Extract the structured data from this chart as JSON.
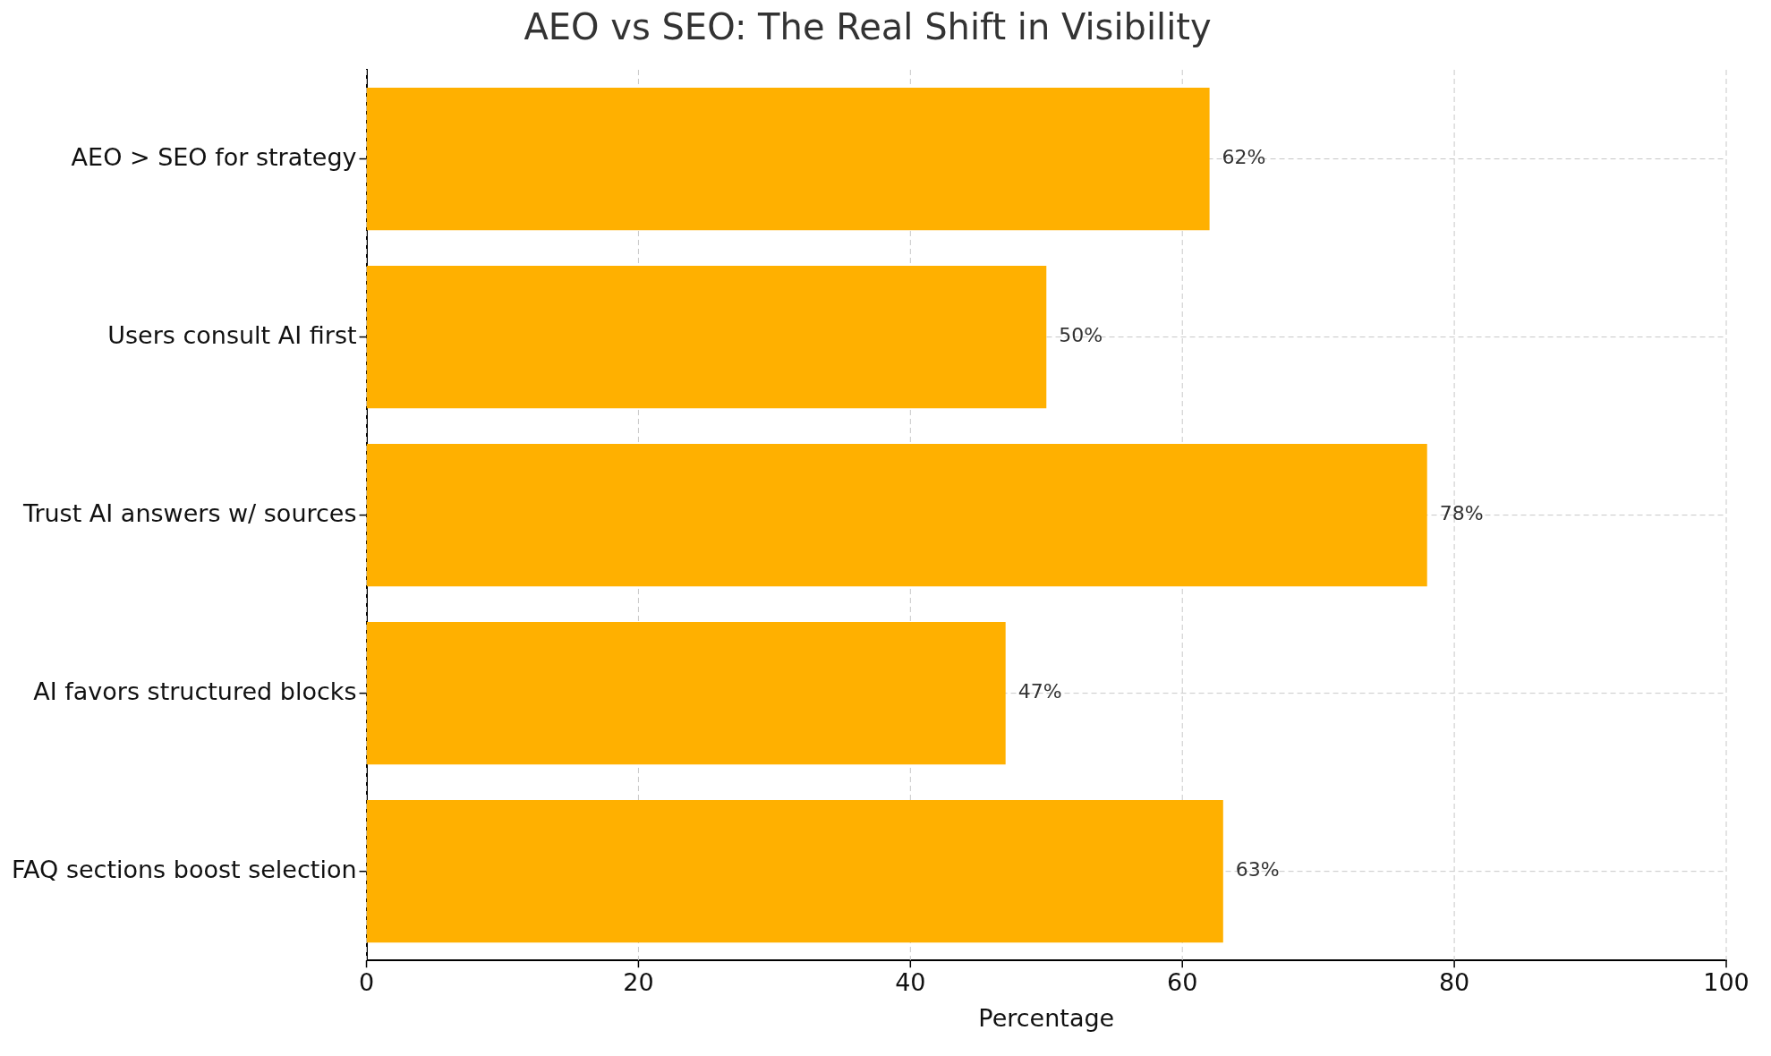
{
  "chart_data": {
    "type": "bar",
    "orientation": "horizontal",
    "title": "AEO vs SEO: The Real Shift in Visibility",
    "xlabel": "Percentage",
    "categories": [
      "AEO > SEO for strategy",
      "Users consult AI first",
      "Trust AI answers w/ sources",
      "AI favors structured blocks",
      "FAQ sections boost selection"
    ],
    "values": [
      62,
      50,
      78,
      47,
      63
    ],
    "color": "#ffb000",
    "value_labels": [
      "62%",
      "50%",
      "78%",
      "47%",
      "63%"
    ],
    "xlim": [
      0,
      100
    ],
    "xticks": [
      0,
      20,
      40,
      60,
      80,
      100
    ],
    "grid": true,
    "line_style": "dashed",
    "legend": false
  }
}
